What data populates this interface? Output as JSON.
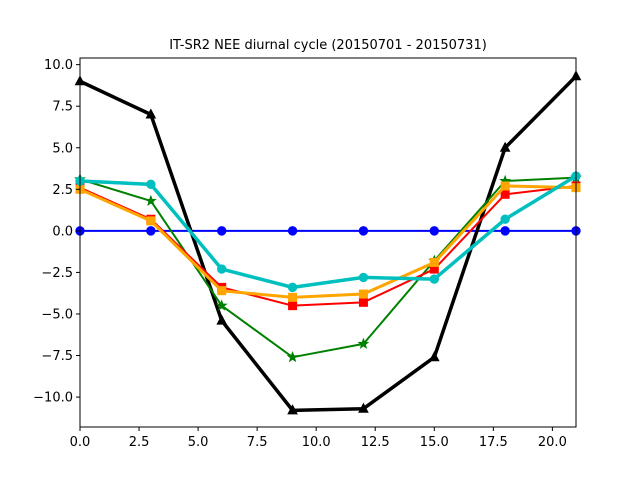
{
  "chart_data": {
    "type": "line",
    "title": "IT-SR2 NEE diurnal cycle (20150701 - 20150731)",
    "xlabel": "",
    "ylabel": "",
    "xlim": [
      0,
      21
    ],
    "ylim": [
      -11.8,
      10.4
    ],
    "grid": false,
    "x": [
      0,
      3,
      6,
      9,
      12,
      15,
      18,
      21
    ],
    "xticks": [
      0.0,
      2.5,
      5.0,
      7.5,
      10.0,
      12.5,
      15.0,
      17.5,
      20.0
    ],
    "xtick_labels": [
      "0.0",
      "2.5",
      "5.0",
      "7.5",
      "10.0",
      "12.5",
      "15.0",
      "17.5",
      "20.0"
    ],
    "yticks": [
      10.0,
      7.5,
      5.0,
      2.5,
      0.0,
      -2.5,
      -5.0,
      -7.5,
      -10.0
    ],
    "ytick_labels": [
      "10.0",
      "7.5",
      "5.0",
      "2.5",
      "0.0",
      "−2.5",
      "−5.0",
      "−7.5",
      "−10.0"
    ],
    "series": [
      {
        "color": "#0000ff",
        "marker": "circle",
        "width": 2,
        "values": [
          0,
          0,
          0,
          0,
          0,
          0,
          0,
          0
        ]
      },
      {
        "color": "#000000",
        "marker": "triangle",
        "width": 3.5,
        "values": [
          9.0,
          7.0,
          -5.4,
          -10.8,
          -10.7,
          -7.6,
          5.0,
          9.3
        ]
      },
      {
        "color": "#008000",
        "marker": "star",
        "width": 2,
        "values": [
          3.1,
          1.8,
          -4.5,
          -7.6,
          -6.8,
          -1.8,
          3.0,
          3.2
        ]
      },
      {
        "color": "#ff0000",
        "marker": "square",
        "width": 2,
        "values": [
          2.6,
          0.7,
          -3.4,
          -4.5,
          -4.3,
          -2.3,
          2.2,
          2.7
        ]
      },
      {
        "color": "#ffa500",
        "marker": "square",
        "width": 3,
        "values": [
          2.5,
          0.6,
          -3.6,
          -4.0,
          -3.8,
          -1.9,
          2.7,
          2.6
        ]
      },
      {
        "color": "#00bfbf",
        "marker": "circle",
        "width": 3.5,
        "values": [
          3.0,
          2.8,
          -2.3,
          -3.4,
          -2.8,
          -2.9,
          0.7,
          3.3
        ]
      }
    ]
  }
}
